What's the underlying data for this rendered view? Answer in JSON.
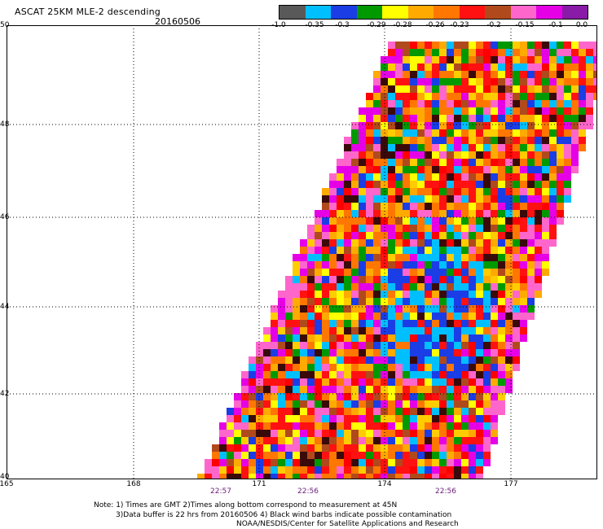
{
  "header": {
    "title": "ASCAT 25KM MLE-2 descending",
    "date": "20160506"
  },
  "colorbar": {
    "colors": [
      "#595959",
      "#00bfff",
      "#1a3de6",
      "#009900",
      "#ffff00",
      "#ffaa00",
      "#ff7700",
      "#ff1111",
      "#b04a1c",
      "#ff66cc",
      "#e600e6",
      "#8a1aa8"
    ],
    "labels": [
      "-1.0",
      "-0.35",
      "-0.3",
      "-0.29",
      "-0.28",
      "-0.26",
      "-0.23",
      "-0.2",
      "-0.15",
      "-0.1",
      "0.0"
    ]
  },
  "map": {
    "lat_labels": [
      "50",
      "48",
      "46",
      "44",
      "42",
      "40"
    ],
    "lon_labels": [
      "165",
      "168",
      "171",
      "174",
      "177"
    ],
    "time_labels": [
      "22:57",
      "22:56",
      "22:56"
    ],
    "swath_colors": [
      "#ff1111",
      "#ff1111",
      "#ff7700",
      "#ff7700",
      "#ffaa00",
      "#ffff00",
      "#ffcc00",
      "#ff0000",
      "#e600e6",
      "#ff66cc",
      "#b04a1c",
      "#3a0a0a",
      "#009900",
      "#1a3de6",
      "#00bfff"
    ]
  },
  "notes": {
    "line1": "Note: 1) Times are GMT 2)Times along bottom correspond to measurement at 45N",
    "line2": "3)Data buffer is 22 hrs from 20160506 4) Black wind barbs indicate possible contamination",
    "line3": "NOAA/NESDIS/Center for Satellite Applications and Research"
  }
}
